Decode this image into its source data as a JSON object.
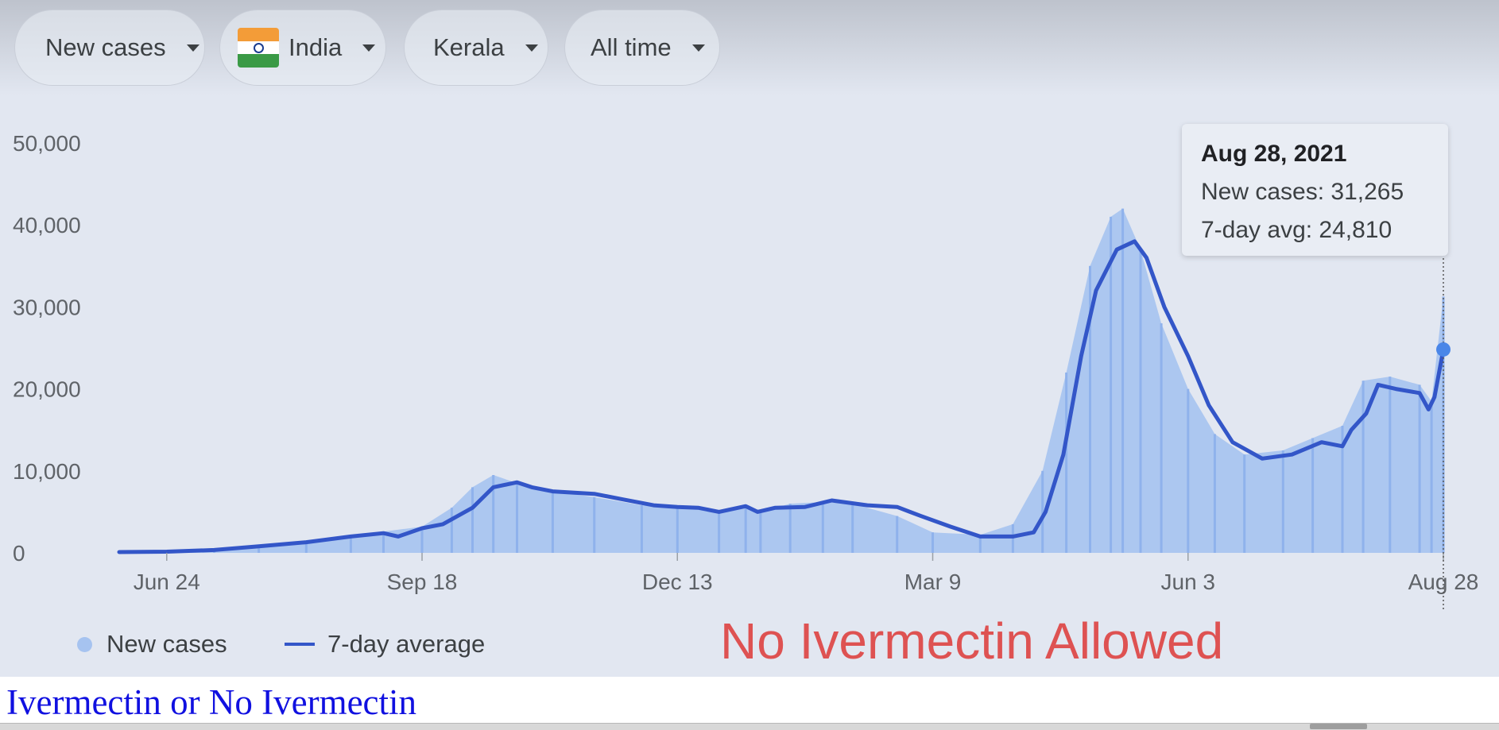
{
  "filters": {
    "metric": "New cases",
    "country": "India",
    "region": "Kerala",
    "range": "All time"
  },
  "icons": {
    "country_flag": "india-flag-icon",
    "dropdown": "caret-down-icon"
  },
  "tooltip": {
    "date": "Aug 28, 2021",
    "new_cases": "New cases: 31,265",
    "avg": "7-day avg: 24,810"
  },
  "legend": {
    "bars": "New cases",
    "line": "7-day average"
  },
  "annotation": "No Ivermectin Allowed",
  "caption": "Ivermectin or No Ivermectin",
  "colors": {
    "bars": "#a6c3f0",
    "line": "#3356c8",
    "annotation": "#de5252",
    "caption": "#1010e0",
    "panel": "#e2e7f1"
  },
  "chart_data": {
    "type": "bar",
    "x_type": "date",
    "start_date": "2020-06-08",
    "end_date": "2021-08-28",
    "ylim": [
      0,
      50000
    ],
    "yticks": [
      0,
      10000,
      20000,
      30000,
      40000,
      50000
    ],
    "ytick_labels": [
      "0",
      "10,000",
      "20,000",
      "30,000",
      "40,000",
      "50,000"
    ],
    "xticks": [
      {
        "date": "2020-06-24",
        "label": "Jun 24"
      },
      {
        "date": "2020-09-18",
        "label": "Sep 18"
      },
      {
        "date": "2020-12-13",
        "label": "Dec 13"
      },
      {
        "date": "2021-03-09",
        "label": "Mar 9"
      },
      {
        "date": "2021-06-03",
        "label": "Jun 3"
      },
      {
        "date": "2021-08-28",
        "label": "Aug 28"
      }
    ],
    "grid": false,
    "legend_position": "bottom-left",
    "series": [
      {
        "name": "New cases",
        "kind": "bar",
        "points": [
          [
            "2020-06-08",
            100
          ],
          [
            "2020-06-24",
            150
          ],
          [
            "2020-07-10",
            400
          ],
          [
            "2020-07-25",
            900
          ],
          [
            "2020-08-10",
            1400
          ],
          [
            "2020-08-25",
            2200
          ],
          [
            "2020-09-05",
            2600
          ],
          [
            "2020-09-18",
            3200
          ],
          [
            "2020-09-28",
            5500
          ],
          [
            "2020-10-05",
            8000
          ],
          [
            "2020-10-12",
            9500
          ],
          [
            "2020-10-20",
            8500
          ],
          [
            "2020-11-01",
            7500
          ],
          [
            "2020-11-15",
            6800
          ],
          [
            "2020-12-01",
            5800
          ],
          [
            "2020-12-13",
            5500
          ],
          [
            "2020-12-27",
            5200
          ],
          [
            "2021-01-05",
            5800
          ],
          [
            "2021-01-10",
            5000
          ],
          [
            "2021-01-20",
            6000
          ],
          [
            "2021-01-31",
            6200
          ],
          [
            "2021-02-10",
            6000
          ],
          [
            "2021-02-25",
            4500
          ],
          [
            "2021-03-09",
            2500
          ],
          [
            "2021-03-25",
            2200
          ],
          [
            "2021-04-05",
            3500
          ],
          [
            "2021-04-15",
            10000
          ],
          [
            "2021-04-23",
            22000
          ],
          [
            "2021-05-01",
            35000
          ],
          [
            "2021-05-08",
            41000
          ],
          [
            "2021-05-12",
            42000
          ],
          [
            "2021-05-18",
            37000
          ],
          [
            "2021-05-25",
            28000
          ],
          [
            "2021-06-03",
            20000
          ],
          [
            "2021-06-12",
            14500
          ],
          [
            "2021-06-22",
            12000
          ],
          [
            "2021-07-05",
            12500
          ],
          [
            "2021-07-15",
            14000
          ],
          [
            "2021-07-25",
            15500
          ],
          [
            "2021-08-01",
            21000
          ],
          [
            "2021-08-10",
            21500
          ],
          [
            "2021-08-20",
            20500
          ],
          [
            "2021-08-24",
            18500
          ],
          [
            "2021-08-28",
            31265
          ]
        ]
      },
      {
        "name": "7-day average",
        "kind": "line",
        "points": [
          [
            "2020-06-08",
            100
          ],
          [
            "2020-06-24",
            150
          ],
          [
            "2020-07-10",
            350
          ],
          [
            "2020-07-25",
            800
          ],
          [
            "2020-08-10",
            1300
          ],
          [
            "2020-08-25",
            2000
          ],
          [
            "2020-09-05",
            2400
          ],
          [
            "2020-09-10",
            2000
          ],
          [
            "2020-09-18",
            3000
          ],
          [
            "2020-09-25",
            3500
          ],
          [
            "2020-10-05",
            5500
          ],
          [
            "2020-10-12",
            8000
          ],
          [
            "2020-10-20",
            8600
          ],
          [
            "2020-10-25",
            8000
          ],
          [
            "2020-11-01",
            7500
          ],
          [
            "2020-11-15",
            7200
          ],
          [
            "2020-11-25",
            6500
          ],
          [
            "2020-12-05",
            5800
          ],
          [
            "2020-12-13",
            5600
          ],
          [
            "2020-12-20",
            5500
          ],
          [
            "2020-12-27",
            5000
          ],
          [
            "2021-01-05",
            5700
          ],
          [
            "2021-01-09",
            5000
          ],
          [
            "2021-01-15",
            5500
          ],
          [
            "2021-01-25",
            5600
          ],
          [
            "2021-02-03",
            6400
          ],
          [
            "2021-02-15",
            5800
          ],
          [
            "2021-02-25",
            5600
          ],
          [
            "2021-03-05",
            4500
          ],
          [
            "2021-03-15",
            3200
          ],
          [
            "2021-03-25",
            2000
          ],
          [
            "2021-04-05",
            2000
          ],
          [
            "2021-04-12",
            2500
          ],
          [
            "2021-04-16",
            5000
          ],
          [
            "2021-04-22",
            12000
          ],
          [
            "2021-04-28",
            24000
          ],
          [
            "2021-05-03",
            32000
          ],
          [
            "2021-05-10",
            37000
          ],
          [
            "2021-05-16",
            38000
          ],
          [
            "2021-05-20",
            36000
          ],
          [
            "2021-05-26",
            30000
          ],
          [
            "2021-06-03",
            24000
          ],
          [
            "2021-06-10",
            18000
          ],
          [
            "2021-06-18",
            13500
          ],
          [
            "2021-06-28",
            11500
          ],
          [
            "2021-07-08",
            12000
          ],
          [
            "2021-07-18",
            13500
          ],
          [
            "2021-07-25",
            13000
          ],
          [
            "2021-07-28",
            15000
          ],
          [
            "2021-08-02",
            17000
          ],
          [
            "2021-08-06",
            20500
          ],
          [
            "2021-08-12",
            20000
          ],
          [
            "2021-08-20",
            19500
          ],
          [
            "2021-08-23",
            17500
          ],
          [
            "2021-08-25",
            19000
          ],
          [
            "2021-08-28",
            24810
          ]
        ]
      }
    ]
  }
}
